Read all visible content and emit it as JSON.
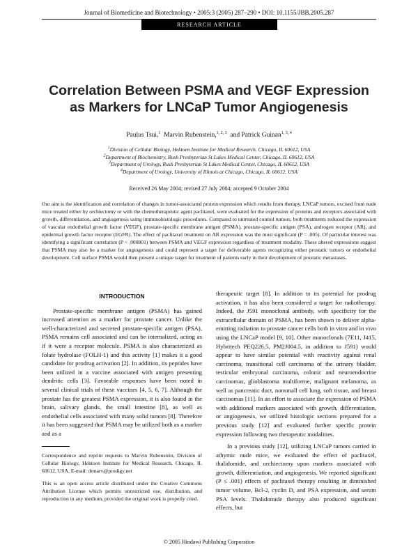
{
  "header": {
    "journal": "Journal of Biomedicine and Biotechnology • 2005:3 (2005) 287–290 • DOI: 10.1155/JBB.2005.287",
    "section": "RESEARCH ARTICLE"
  },
  "title": {
    "line1": "Correlation Between PSMA and VEGF Expression",
    "line2": "as Markers for LNCaP Tumor Angiogenesis"
  },
  "authors": [
    {
      "name": "Paulus Tsui,",
      "sup": "1"
    },
    {
      "name": "Marvin Rubenstein,",
      "sup": "1, 2, 3"
    },
    {
      "name": "and Patrick Guinan",
      "sup": "1, 3, 4"
    }
  ],
  "affiliations": [
    {
      "sup": "1",
      "text": "Division of Cellular Biology, Hektoen Institute for Medical Research, Chicago, IL 60612, USA"
    },
    {
      "sup": "2",
      "text": "Department of Biochemistry, Rush Presbyterian St Lukes Medical Center, Chicago, IL 60612, USA"
    },
    {
      "sup": "3",
      "text": "Department of Urology, Rush Presbyterian St Lukes Medical Center, Chicago, IL 60612, USA"
    },
    {
      "sup": "4",
      "text": "Department of Urology, University of Illinois at Chicago, Chicago, IL 60612, USA"
    }
  ],
  "received": "Received 26 May 2004; revised 27 July 2004; accepted 9 October 2004",
  "abstract": "Our aim is the identification and correlation of changes in tumor-associated protein expression which results from therapy. LNCaP tumors, excised from nude mice treated either by orchiectomy or with the chemotherapeutic agent paclitaxel, were evaluated for the expression of proteins and receptors associated with growth, differentiation, and angiogenesis using immunohistologic procedures. Compared to untreated control tumors, both treatments reduced the expression of vascular endothelial growth factor (VEGF), prostate-specific membrane antigen (PSMA), prostate-specific antigen (PSA), androgen receptor (AR), and epidermal growth factor receptor (EGFR). The effect of paclitaxel treatment on AR expression was the most significant (P = .005). Of particular interest was identifying a significant correlation (P < .000801) between PSMA and VEGF expression regardless of treatment modality. These altered expressions suggest that PSMA may also be a marker for angiogenesis and could represent a target for deliverable agents recognizing either prostatic tumors or endothelial development. Cell surface PSMA would then present a unique target for treatment of patients early in their development of prostatic metastases.",
  "body": {
    "intro_heading": "INTRODUCTION",
    "left_p1": "Prostate-specific membrane antigen (PSMA) has gained increased attention as a marker for prostate cancer. Unlike the well-characterized and secreted prostate-specific antigen (PSA), PSMA remains cell associated and can be internalized, acting as if it were a receptor molecule. PSMA is also characterized as folate hydrolase (FOLH-1) and this activity [1] makes it a good candidate for prodrug activation [2]. In addition, its peptides have been utilized in a vaccine associated with antigen presenting dendritic cells [3]. Favorable responses have been noted in several clinical trials of these vaccines [4, 5, 6, 7]. Although the prostate has the greatest PSMA expression, it is also found in the brain, salivary glands, the small intestine [8], as well as endothelial cells associated with many solid tumors [8]. Therefore it has been suggested that PSMA may be utilized both as a marker and as a",
    "right_p1": "therapeutic target [8]. In addition to its potential for prodrug activation, it has also been considered a target for radiotherapy. Indeed, the J591 monoclonal antibody, with specificity for the extracellular domain of PSMA, has been shown to deliver alpha-emitting radiation to prostate cancer cells both in vitro and in vivo using the LNCaP model [9, 10]. Other monoclonals (7E11, J415, Hybritech PEQ226.5, PM2J004.5, in addition to J591) would appear to have similar potential with reactivity against renal carcinoma, transitional cell carcinoma of the urinary bladder, testicular embryonal carcinoma, colonic and neuroendocrine carcinomas, glioblastoma multiforme, malignant melanoma, as well as pancreatic duct, nonsmall cell lung, soft tissue, and breast carcinomas [11]. In an effort to associate the expression of PSMA with additional markers associated with growth, differentiation, or angiogenesis, we utilized histologic sections prepared for a previous study [12] and evaluated further specific protein expression following two therapeutic modalities.",
    "right_p2": "In a previous study [12], utilizing LNCaP tumors carried in athymic nude mice, we evaluated the effect of paclitaxel, thalidomide, and orchiectomy upon markers associated with growth, differentiation, and angiogenesis. We reported significant (P ≤ .001) effects of paclitaxel therapy resulting in diminished tumor volume, Bcl-2, cyclin D, and PSA expression, and serum PSA levels. Thalidomide therapy also produced significant effects, but"
  },
  "footnotes": {
    "correspondence": "Correspondence and reprint requests to Marvin Rubenstein, Division of Cellular Biology, Hektoen Institute for Medical Research, Chicago, IL 60612, USA, E-mail: drmarv@prodigy.net",
    "license": "This is an open access article distributed under the Creative Commons Attribution License which permits unrestricted use, distribution, and reproduction in any medium, provided the original work is properly cited."
  },
  "copyright": "© 2005 Hindawi Publishing Corporation"
}
